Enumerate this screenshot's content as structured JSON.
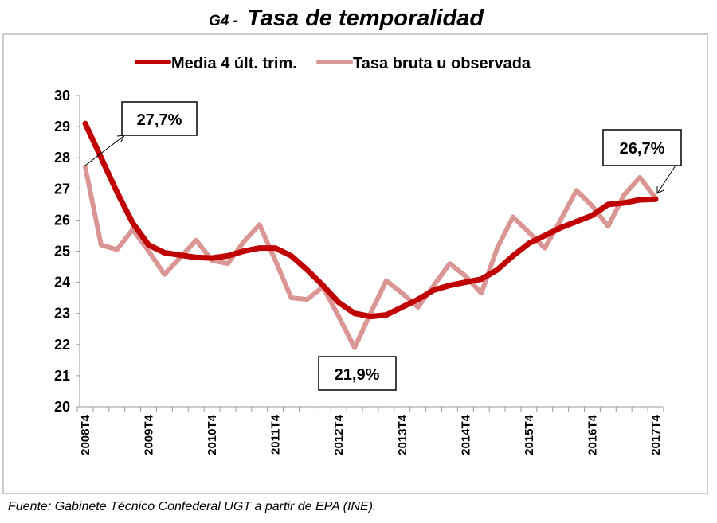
{
  "chart_data": {
    "type": "line",
    "title_prefix": "G4 -",
    "title": "Tasa de temporalidad",
    "xlabel": "",
    "ylabel": "",
    "ylim": [
      20,
      30
    ],
    "yticks": [
      20,
      21,
      22,
      23,
      24,
      25,
      26,
      27,
      28,
      29,
      30
    ],
    "grid": false,
    "legend_position": "top",
    "x": [
      "2008T4",
      "2009T1",
      "2009T2",
      "2009T3",
      "2009T4",
      "2010T1",
      "2010T2",
      "2010T3",
      "2010T4",
      "2011T1",
      "2011T2",
      "2011T3",
      "2011T4",
      "2012T1",
      "2012T2",
      "2012T3",
      "2012T4",
      "2013T1",
      "2013T2",
      "2013T3",
      "2013T4",
      "2014T1",
      "2014T2",
      "2014T3",
      "2014T4",
      "2015T1",
      "2015T2",
      "2015T3",
      "2015T4",
      "2016T1",
      "2016T2",
      "2016T3",
      "2016T4",
      "2017T1",
      "2017T2",
      "2017T3",
      "2017T4"
    ],
    "xtick_labels": [
      "2008T4",
      "2009T4",
      "2010T4",
      "2011T4",
      "2012T4",
      "2013T4",
      "2014T4",
      "2015T4",
      "2016T4",
      "2017T4"
    ],
    "series": [
      {
        "name": "Media 4 últ. trim.",
        "color": "#C00000",
        "values": [
          29.1,
          28.0,
          26.9,
          25.9,
          25.2,
          24.95,
          24.87,
          24.8,
          24.78,
          24.85,
          25.0,
          25.1,
          25.1,
          24.85,
          24.4,
          23.9,
          23.35,
          23.0,
          22.9,
          22.95,
          23.2,
          23.45,
          23.75,
          23.9,
          24.0,
          24.1,
          24.4,
          24.85,
          25.25,
          25.5,
          25.75,
          25.95,
          26.15,
          26.5,
          26.55,
          26.65,
          26.67
        ]
      },
      {
        "name": "Tasa bruta u observada",
        "color": "#D99694",
        "values": [
          27.7,
          25.2,
          25.05,
          25.7,
          25.0,
          24.25,
          24.8,
          25.35,
          24.7,
          24.6,
          25.3,
          25.85,
          24.7,
          23.5,
          23.45,
          23.85,
          22.9,
          21.9,
          23.0,
          24.05,
          23.65,
          23.2,
          23.9,
          24.6,
          24.2,
          23.65,
          25.1,
          26.1,
          25.6,
          25.1,
          26.0,
          26.95,
          26.45,
          25.8,
          26.8,
          27.37,
          26.7
        ]
      }
    ],
    "annotations": [
      "27,7%",
      "21,9%",
      "26,7%"
    ]
  },
  "source": "Fuente: Gabinete Técnico Confederal UGT a partir de EPA (INE)."
}
